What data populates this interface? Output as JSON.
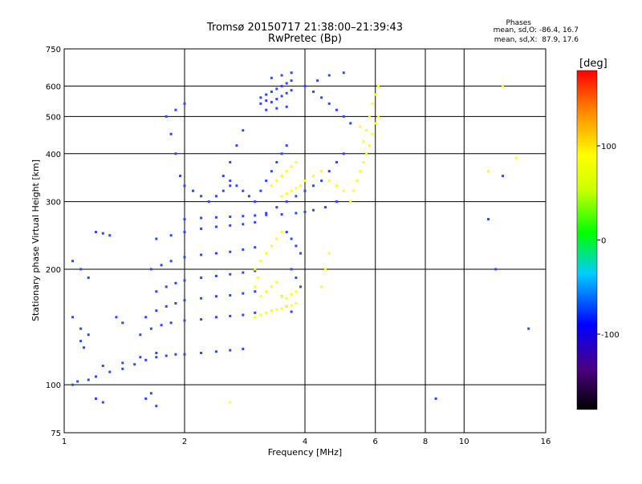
{
  "chart_data": {
    "type": "scatter",
    "title_line1": "Tromsø 20150717 21:38:00–21:39:43",
    "title_line2": "RwPretec (Bp)",
    "xlabel": "Frequency [MHz]",
    "ylabel": "Stationary phase Virtual Height [km]",
    "x_scale": "log",
    "y_scale": "log",
    "xlim": [
      1,
      16
    ],
    "ylim": [
      75,
      750
    ],
    "x_ticks": [
      1,
      2,
      4,
      6,
      8,
      10,
      16
    ],
    "x_tick_labels": [
      "1",
      "2",
      "4",
      "6",
      "8",
      "10",
      "16"
    ],
    "y_ticks": [
      75,
      100,
      200,
      300,
      400,
      500,
      600,
      750
    ],
    "y_tick_labels": [
      "75",
      "100",
      "200",
      "300",
      "400",
      "500",
      "600",
      "750"
    ],
    "grid": true,
    "stats_title": "Phases",
    "stats_o": "mean, sd,O: -86.4, 16.7",
    "stats_x": "mean, sd,X:  87.9, 17.6",
    "colorbar": {
      "label": "[deg]",
      "range": [
        -180,
        180
      ],
      "ticks": [
        100,
        0,
        -100
      ],
      "tick_labels": [
        "100",
        "0",
        "-100"
      ]
    },
    "series": [
      {
        "name": "O",
        "phase": -86.4,
        "color": "#2a49ff",
        "points": [
          [
            1.05,
            100
          ],
          [
            1.08,
            102
          ],
          [
            1.15,
            103
          ],
          [
            1.2,
            105
          ],
          [
            1.3,
            108
          ],
          [
            1.4,
            110
          ],
          [
            1.5,
            113
          ],
          [
            1.6,
            116
          ],
          [
            1.7,
            118
          ],
          [
            1.8,
            119
          ],
          [
            1.9,
            120
          ],
          [
            2.0,
            120
          ],
          [
            2.2,
            121
          ],
          [
            2.4,
            122
          ],
          [
            2.6,
            123
          ],
          [
            2.8,
            124
          ],
          [
            1.25,
            112
          ],
          [
            1.4,
            114
          ],
          [
            1.55,
            118
          ],
          [
            1.7,
            121
          ],
          [
            1.55,
            135
          ],
          [
            1.65,
            140
          ],
          [
            1.75,
            143
          ],
          [
            1.85,
            145
          ],
          [
            2.0,
            147
          ],
          [
            2.2,
            148
          ],
          [
            2.4,
            150
          ],
          [
            2.6,
            151
          ],
          [
            2.8,
            152
          ],
          [
            3.0,
            154
          ],
          [
            1.6,
            150
          ],
          [
            1.7,
            156
          ],
          [
            1.8,
            160
          ],
          [
            1.9,
            163
          ],
          [
            2.0,
            166
          ],
          [
            2.2,
            168
          ],
          [
            2.4,
            170
          ],
          [
            2.6,
            171
          ],
          [
            2.8,
            173
          ],
          [
            3.0,
            175
          ],
          [
            1.7,
            175
          ],
          [
            1.8,
            180
          ],
          [
            1.9,
            184
          ],
          [
            2.0,
            187
          ],
          [
            2.2,
            190
          ],
          [
            2.4,
            192
          ],
          [
            2.6,
            194
          ],
          [
            2.8,
            196
          ],
          [
            3.0,
            198
          ],
          [
            1.65,
            200
          ],
          [
            1.75,
            205
          ],
          [
            1.85,
            210
          ],
          [
            2.0,
            215
          ],
          [
            2.2,
            218
          ],
          [
            2.4,
            220
          ],
          [
            2.6,
            222
          ],
          [
            2.8,
            225
          ],
          [
            3.0,
            228
          ],
          [
            1.7,
            240
          ],
          [
            1.85,
            245
          ],
          [
            2.0,
            250
          ],
          [
            2.2,
            255
          ],
          [
            2.4,
            258
          ],
          [
            2.6,
            260
          ],
          [
            2.8,
            262
          ],
          [
            3.0,
            265
          ],
          [
            2.0,
            270
          ],
          [
            2.2,
            272
          ],
          [
            2.4,
            273
          ],
          [
            2.6,
            274
          ],
          [
            2.8,
            275
          ],
          [
            3.0,
            276
          ],
          [
            3.2,
            277
          ],
          [
            3.5,
            278
          ],
          [
            3.8,
            280
          ],
          [
            4.0,
            282
          ],
          [
            4.2,
            285
          ],
          [
            4.5,
            290
          ],
          [
            4.8,
            300
          ],
          [
            3.2,
            280
          ],
          [
            3.4,
            290
          ],
          [
            3.6,
            300
          ],
          [
            3.8,
            310
          ],
          [
            4.0,
            320
          ],
          [
            4.2,
            330
          ],
          [
            4.4,
            340
          ],
          [
            4.6,
            360
          ],
          [
            4.8,
            380
          ],
          [
            5.0,
            400
          ],
          [
            3.0,
            300
          ],
          [
            3.1,
            320
          ],
          [
            3.2,
            340
          ],
          [
            3.3,
            360
          ],
          [
            3.4,
            380
          ],
          [
            3.5,
            400
          ],
          [
            3.6,
            420
          ],
          [
            3.6,
            250
          ],
          [
            3.7,
            240
          ],
          [
            3.8,
            230
          ],
          [
            3.9,
            220
          ],
          [
            3.7,
            200
          ],
          [
            3.8,
            190
          ],
          [
            3.9,
            180
          ],
          [
            3.5,
            170
          ],
          [
            3.6,
            160
          ],
          [
            3.7,
            155
          ],
          [
            3.1,
            560
          ],
          [
            3.2,
            570
          ],
          [
            3.3,
            580
          ],
          [
            3.4,
            590
          ],
          [
            3.5,
            600
          ],
          [
            3.6,
            610
          ],
          [
            3.7,
            620
          ],
          [
            3.1,
            540
          ],
          [
            3.2,
            550
          ],
          [
            3.3,
            545
          ],
          [
            3.4,
            555
          ],
          [
            3.5,
            565
          ],
          [
            3.6,
            575
          ],
          [
            3.7,
            585
          ],
          [
            3.2,
            520
          ],
          [
            3.4,
            525
          ],
          [
            3.6,
            530
          ],
          [
            3.3,
            630
          ],
          [
            3.5,
            640
          ],
          [
            3.7,
            650
          ],
          [
            4.0,
            600
          ],
          [
            4.2,
            580
          ],
          [
            4.4,
            560
          ],
          [
            4.6,
            540
          ],
          [
            4.8,
            520
          ],
          [
            5.0,
            500
          ],
          [
            5.2,
            480
          ],
          [
            4.3,
            620
          ],
          [
            4.6,
            640
          ],
          [
            5.0,
            650
          ],
          [
            1.8,
            500
          ],
          [
            1.9,
            520
          ],
          [
            2.0,
            540
          ],
          [
            1.85,
            450
          ],
          [
            1.9,
            400
          ],
          [
            1.95,
            350
          ],
          [
            2.0,
            330
          ],
          [
            2.1,
            320
          ],
          [
            2.2,
            310
          ],
          [
            2.3,
            300
          ],
          [
            2.4,
            310
          ],
          [
            2.5,
            320
          ],
          [
            2.6,
            330
          ],
          [
            1.05,
            210
          ],
          [
            1.1,
            200
          ],
          [
            1.15,
            190
          ],
          [
            1.2,
            250
          ],
          [
            1.25,
            248
          ],
          [
            1.3,
            245
          ],
          [
            1.05,
            150
          ],
          [
            1.1,
            140
          ],
          [
            1.15,
            135
          ],
          [
            1.1,
            130
          ],
          [
            1.12,
            125
          ],
          [
            1.35,
            150
          ],
          [
            1.4,
            145
          ],
          [
            1.2,
            92
          ],
          [
            1.25,
            90
          ],
          [
            1.6,
            92
          ],
          [
            1.65,
            95
          ],
          [
            1.7,
            88
          ],
          [
            2.5,
            350
          ],
          [
            2.6,
            340
          ],
          [
            2.7,
            330
          ],
          [
            2.8,
            320
          ],
          [
            2.9,
            310
          ],
          [
            2.6,
            380
          ],
          [
            2.7,
            420
          ],
          [
            2.8,
            460
          ],
          [
            8.5,
            92
          ],
          [
            14.5,
            140
          ],
          [
            11.5,
            270
          ],
          [
            12,
            200
          ],
          [
            12.5,
            350
          ]
        ]
      },
      {
        "name": "X",
        "phase": 87.9,
        "color": "#ffff20",
        "points": [
          [
            3.0,
            150
          ],
          [
            3.1,
            152
          ],
          [
            3.2,
            154
          ],
          [
            3.3,
            156
          ],
          [
            3.4,
            157
          ],
          [
            3.5,
            158
          ],
          [
            3.6,
            160
          ],
          [
            3.7,
            161
          ],
          [
            3.8,
            163
          ],
          [
            3.1,
            170
          ],
          [
            3.2,
            175
          ],
          [
            3.3,
            180
          ],
          [
            3.4,
            185
          ],
          [
            3.5,
            170
          ],
          [
            3.6,
            168
          ],
          [
            3.7,
            172
          ],
          [
            3.8,
            175
          ],
          [
            3.0,
            200
          ],
          [
            3.1,
            210
          ],
          [
            3.2,
            220
          ],
          [
            3.3,
            230
          ],
          [
            3.4,
            240
          ],
          [
            3.5,
            250
          ],
          [
            3.0,
            180
          ],
          [
            3.05,
            190
          ],
          [
            3.5,
            310
          ],
          [
            3.6,
            315
          ],
          [
            3.7,
            320
          ],
          [
            3.8,
            325
          ],
          [
            3.9,
            330
          ],
          [
            4.0,
            340
          ],
          [
            4.2,
            350
          ],
          [
            4.4,
            360
          ],
          [
            4.6,
            340
          ],
          [
            4.8,
            330
          ],
          [
            5.0,
            320
          ],
          [
            3.3,
            330
          ],
          [
            3.4,
            340
          ],
          [
            3.5,
            350
          ],
          [
            3.6,
            360
          ],
          [
            3.7,
            370
          ],
          [
            3.8,
            380
          ],
          [
            5.2,
            300
          ],
          [
            5.3,
            320
          ],
          [
            5.4,
            340
          ],
          [
            5.5,
            360
          ],
          [
            5.6,
            380
          ],
          [
            5.7,
            400
          ],
          [
            5.8,
            420
          ],
          [
            5.9,
            450
          ],
          [
            6.0,
            480
          ],
          [
            6.1,
            500
          ],
          [
            5.6,
            430
          ],
          [
            5.7,
            460
          ],
          [
            5.8,
            500
          ],
          [
            5.9,
            540
          ],
          [
            6.0,
            570
          ],
          [
            6.1,
            600
          ],
          [
            5.5,
            470
          ],
          [
            4.6,
            220
          ],
          [
            4.5,
            200
          ],
          [
            4.4,
            180
          ],
          [
            2.6,
            90
          ],
          [
            12.5,
            600
          ],
          [
            11.5,
            360
          ],
          [
            13.5,
            390
          ]
        ]
      }
    ]
  }
}
